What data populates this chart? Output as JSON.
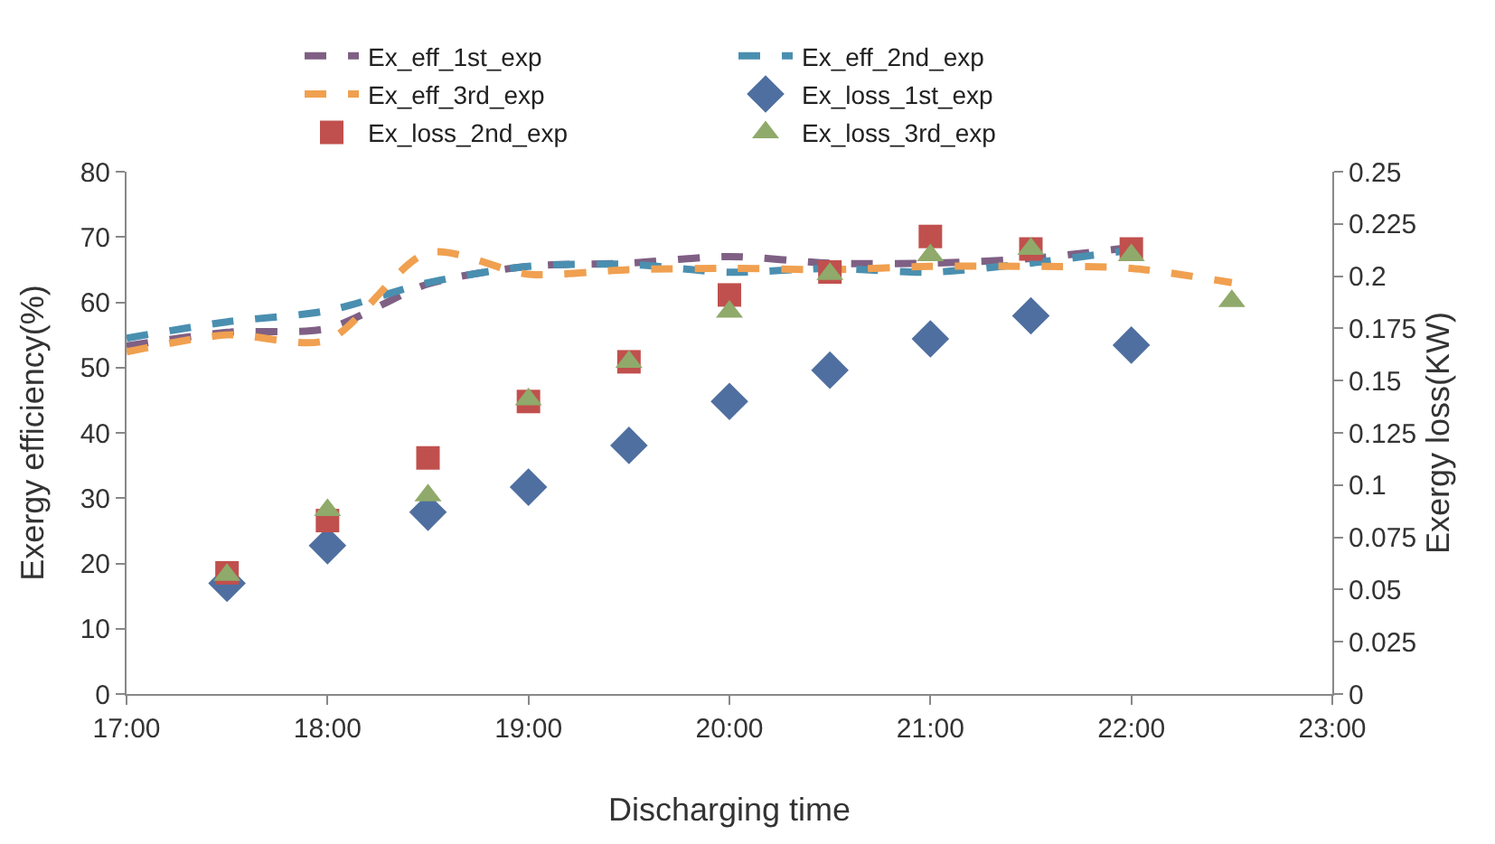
{
  "chart_data": {
    "type": "line",
    "xlabel": "Discharging time",
    "ylabel": "Exergy efficiency(%)",
    "y2label": "Exergy loss(KW)",
    "xlim": [
      17,
      23
    ],
    "xticks": [
      {
        "value": 17,
        "label": "17:00"
      },
      {
        "value": 18,
        "label": "18:00"
      },
      {
        "value": 19,
        "label": "19:00"
      },
      {
        "value": 20,
        "label": "20:00"
      },
      {
        "value": 21,
        "label": "21:00"
      },
      {
        "value": 22,
        "label": "22:00"
      },
      {
        "value": 23,
        "label": "23:00"
      }
    ],
    "ylim": [
      0,
      80
    ],
    "yticks": [
      0,
      10,
      20,
      30,
      40,
      50,
      60,
      70,
      80
    ],
    "y2lim": [
      0,
      0.25
    ],
    "y2ticks": [
      0,
      0.025,
      0.05,
      0.075,
      0.1,
      0.125,
      0.15,
      0.175,
      0.2,
      0.225,
      0.25
    ],
    "grid": false,
    "legend": "top",
    "series": [
      {
        "name": "Ex_eff_1st_exp",
        "color": "#7f6084",
        "line_style": "dashed",
        "marker": "none",
        "x": [
          17,
          17.5,
          18,
          18.5,
          19,
          19.5,
          20,
          20.5,
          21,
          21.5,
          22
        ],
        "values": [
          53.3,
          55.4,
          56,
          62.8,
          65.5,
          66,
          67,
          66,
          66,
          66.7,
          68.4
        ]
      },
      {
        "name": "Ex_eff_2nd_exp",
        "color": "#4a8fb0",
        "line_style": "dashed",
        "marker": "none",
        "x": [
          17,
          17.5,
          18,
          18.5,
          19,
          19.5,
          20,
          20.5,
          21,
          21.5,
          22
        ],
        "values": [
          54.5,
          57,
          58.7,
          63,
          65.5,
          65.8,
          64.6,
          65.2,
          64.6,
          66,
          68
        ]
      },
      {
        "name": "Ex_eff_3rd_exp",
        "color": "#f0a050",
        "line_style": "dashed",
        "marker": "none",
        "x": [
          17,
          17.5,
          18,
          18.5,
          19,
          19.5,
          20,
          20.5,
          21,
          21.5,
          22,
          22.5
        ],
        "values": [
          52.4,
          55,
          54.2,
          67.6,
          64.3,
          65,
          65.2,
          65,
          65.5,
          65.5,
          65.2,
          63
        ]
      },
      {
        "name": "Ex_loss_1st_exp",
        "type": "scatter",
        "axis": "y2",
        "color": "#4f6fa0",
        "marker": "diamond",
        "x": [
          17.5,
          18,
          18.5,
          19,
          19.5,
          20,
          20.5,
          21,
          21.5,
          22
        ],
        "values": [
          0.053,
          0.071,
          0.087,
          0.099,
          0.119,
          0.14,
          0.155,
          0.17,
          0.181,
          0.167
        ]
      },
      {
        "name": "Ex_loss_2nd_exp",
        "type": "scatter",
        "axis": "y2",
        "color": "#c0504d",
        "marker": "square",
        "x": [
          17.5,
          18,
          18.5,
          19,
          19.5,
          20,
          20.5,
          21,
          21.5,
          22
        ],
        "values": [
          0.058,
          0.083,
          0.113,
          0.14,
          0.159,
          0.191,
          0.202,
          0.219,
          0.213,
          0.213
        ]
      },
      {
        "name": "Ex_loss_3rd_exp",
        "type": "scatter",
        "axis": "y2",
        "color": "#8faa6a",
        "marker": "triangle",
        "x": [
          17.5,
          18,
          18.5,
          19,
          19.5,
          20,
          20.5,
          21,
          21.5,
          22,
          22.5
        ],
        "values": [
          0.057,
          0.088,
          0.095,
          0.141,
          0.159,
          0.183,
          0.201,
          0.21,
          0.213,
          0.21,
          0.188
        ]
      }
    ]
  }
}
